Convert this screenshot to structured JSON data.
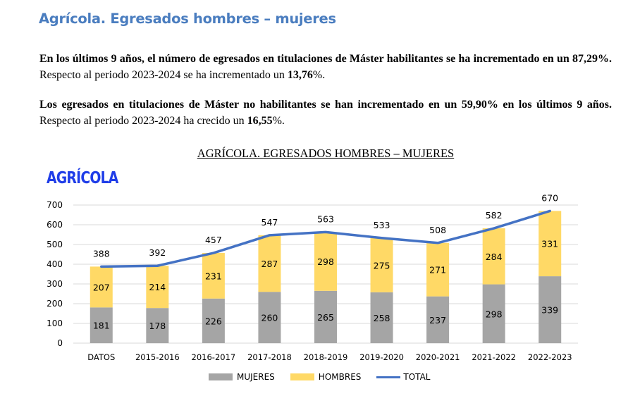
{
  "heading": "Agrícola. Egresados hombres – mujeres",
  "paragraph1": {
    "bold_part": "En los últimos 9 años, el número de egresados en titulaciones de Máster habilitantes se ha incrementado en un 87,29%.",
    "normal_part": " Respecto al periodo 2023-2024 se ha incrementado un ",
    "bold_value": "13,76",
    "suffix": "%."
  },
  "paragraph2": {
    "bold_part": "Los egresados en titulaciones de Máster no habilitantes se han incrementado en un 59,90% en los últimos 9 años.",
    "normal_part": " Respecto al periodo 2023-2024 ha crecido un ",
    "bold_value": "16,55",
    "suffix": "%."
  },
  "logo_text": "AGRÍCOLA",
  "colors": {
    "mujeres": "#a5a5a5",
    "hombres": "#ffd966",
    "total": "#4472c4",
    "grid": "#d9d9d9",
    "heading": "#4a7dbf",
    "logo": "#1f3de8"
  },
  "chart_data": {
    "type": "bar",
    "stacked": true,
    "title": "AGRÍCOLA. EGRESADOS HOMBRES – MUJERES",
    "xlabel": "",
    "ylabel": "",
    "ylim": [
      0,
      700
    ],
    "yticks": [
      "0",
      "100",
      "200",
      "300",
      "400",
      "500",
      "600",
      "700"
    ],
    "grid": true,
    "legend_position": "bottom",
    "categories": [
      "DATOS",
      "2015-2016",
      "2016-2017",
      "2017-2018",
      "2018-2019",
      "2019-2020",
      "2020-2021",
      "2021-2022",
      "2022-2023"
    ],
    "series": [
      {
        "name": "MUJERES",
        "type": "bar",
        "values": [
          181,
          178,
          226,
          260,
          265,
          258,
          237,
          298,
          339
        ]
      },
      {
        "name": "HOMBRES",
        "type": "bar",
        "values": [
          207,
          214,
          231,
          287,
          298,
          275,
          271,
          284,
          331
        ]
      },
      {
        "name": "TOTAL",
        "type": "line",
        "values": [
          388,
          392,
          457,
          547,
          563,
          533,
          508,
          582,
          670
        ]
      }
    ]
  }
}
